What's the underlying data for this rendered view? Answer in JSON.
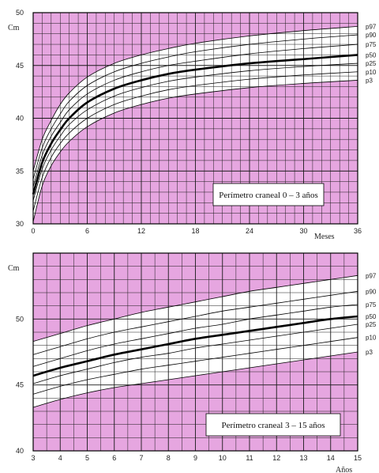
{
  "chart_data": [
    {
      "type": "line",
      "title": "Perímetro craneal  0 – 3 años",
      "xlabel": "Meses",
      "ylabel": "Cm",
      "xlim": [
        0,
        36
      ],
      "ylim": [
        30,
        50
      ],
      "x_ticks": [
        0,
        6,
        12,
        18,
        24,
        30,
        36
      ],
      "y_ticks": [
        30,
        35,
        40,
        45,
        50
      ],
      "grid": true,
      "background_color": "#e6a6e0",
      "band_color": "#ffffff",
      "median_series": "p50",
      "x": [
        0,
        1,
        2,
        3,
        4,
        6,
        9,
        12,
        15,
        18,
        24,
        30,
        36
      ],
      "series": [
        {
          "name": "p3",
          "values": [
            30.2,
            33.6,
            35.5,
            36.8,
            37.8,
            39.2,
            40.5,
            41.3,
            41.9,
            42.3,
            42.9,
            43.3,
            43.6
          ]
        },
        {
          "name": "p10",
          "values": [
            31.2,
            34.4,
            36.3,
            37.6,
            38.6,
            40.0,
            41.3,
            42.1,
            42.7,
            43.1,
            43.7,
            44.1,
            44.4
          ]
        },
        {
          "name": "p25",
          "values": [
            32.2,
            35.2,
            37.0,
            38.3,
            39.4,
            40.8,
            42.1,
            42.9,
            43.5,
            43.9,
            44.5,
            44.9,
            45.2
          ]
        },
        {
          "name": "p50",
          "values": [
            32.8,
            35.8,
            37.6,
            38.9,
            40.0,
            41.5,
            42.8,
            43.6,
            44.2,
            44.6,
            45.2,
            45.6,
            46.0
          ]
        },
        {
          "name": "p75",
          "values": [
            33.5,
            36.5,
            38.3,
            39.6,
            40.8,
            42.3,
            43.6,
            44.4,
            45.0,
            45.4,
            46.1,
            46.6,
            47.0
          ]
        },
        {
          "name": "p90",
          "values": [
            34.2,
            37.2,
            39.0,
            40.4,
            41.6,
            43.1,
            44.4,
            45.2,
            45.8,
            46.3,
            47.0,
            47.5,
            47.9
          ]
        },
        {
          "name": "p97",
          "values": [
            35.0,
            38.0,
            39.8,
            41.3,
            42.4,
            43.9,
            45.2,
            46.0,
            46.6,
            47.1,
            47.8,
            48.3,
            48.7
          ]
        }
      ]
    },
    {
      "type": "line",
      "title": "Perímetro craneal  3 – 15 años",
      "xlabel": "Años",
      "ylabel": "Cm",
      "xlim": [
        3,
        15
      ],
      "ylim": [
        40,
        55
      ],
      "x_ticks": [
        3,
        4,
        5,
        6,
        7,
        8,
        9,
        10,
        11,
        12,
        13,
        14,
        15
      ],
      "y_ticks": [
        40,
        45,
        50
      ],
      "grid": true,
      "background_color": "#e6a6e0",
      "band_color": "#ffffff",
      "median_series": "p50",
      "x": [
        3,
        4,
        5,
        6,
        7,
        8,
        9,
        10,
        11,
        12,
        13,
        14,
        15
      ],
      "series": [
        {
          "name": "p3",
          "values": [
            43.3,
            43.9,
            44.4,
            44.8,
            45.1,
            45.4,
            45.7,
            46.0,
            46.3,
            46.6,
            46.9,
            47.2,
            47.5
          ]
        },
        {
          "name": "p10",
          "values": [
            44.3,
            44.9,
            45.4,
            45.8,
            46.2,
            46.5,
            46.8,
            47.1,
            47.4,
            47.7,
            48.0,
            48.3,
            48.6
          ]
        },
        {
          "name": "p25",
          "values": [
            45.1,
            45.7,
            46.2,
            46.7,
            47.1,
            47.4,
            47.8,
            48.1,
            48.4,
            48.7,
            49.0,
            49.3,
            49.6
          ]
        },
        {
          "name": "p50",
          "values": [
            45.7,
            46.3,
            46.8,
            47.3,
            47.7,
            48.1,
            48.5,
            48.8,
            49.1,
            49.4,
            49.7,
            50.0,
            50.2
          ]
        },
        {
          "name": "p75",
          "values": [
            46.4,
            47.0,
            47.6,
            48.1,
            48.5,
            48.9,
            49.3,
            49.6,
            50.0,
            50.3,
            50.6,
            50.9,
            51.1
          ]
        },
        {
          "name": "p90",
          "values": [
            47.3,
            47.9,
            48.5,
            49.0,
            49.4,
            49.8,
            50.2,
            50.6,
            50.9,
            51.2,
            51.5,
            51.8,
            52.1
          ]
        },
        {
          "name": "p97",
          "values": [
            48.3,
            48.9,
            49.5,
            50.0,
            50.5,
            50.9,
            51.3,
            51.7,
            52.1,
            52.4,
            52.7,
            53.0,
            53.3
          ]
        }
      ]
    }
  ]
}
